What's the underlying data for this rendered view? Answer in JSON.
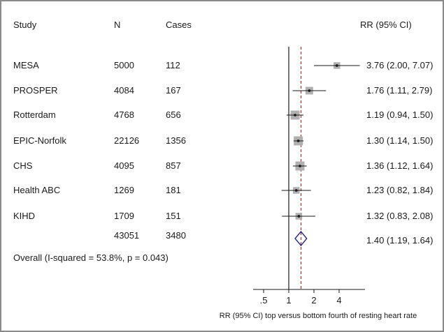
{
  "chart_data": {
    "type": "forest",
    "columns": {
      "study": "Study",
      "n": "N",
      "cases": "Cases",
      "rr": "RR (95% CI)"
    },
    "studies": [
      {
        "name": "MESA",
        "n": "5000",
        "cases": "112",
        "rr": 3.76,
        "lo": 2.0,
        "hi": 7.07,
        "label": "3.76 (2.00, 7.07)",
        "weight": 0.5
      },
      {
        "name": "PROSPER",
        "n": "4084",
        "cases": "167",
        "rr": 1.76,
        "lo": 1.11,
        "hi": 2.79,
        "label": "1.76 (1.11, 2.79)",
        "weight": 0.7
      },
      {
        "name": "Rotterdam",
        "n": "4768",
        "cases": "656",
        "rr": 1.19,
        "lo": 0.94,
        "hi": 1.5,
        "label": "1.19 (0.94, 1.50)",
        "weight": 1.0
      },
      {
        "name": "EPIC-Norfolk",
        "n": "22126",
        "cases": "1356",
        "rr": 1.3,
        "lo": 1.14,
        "hi": 1.5,
        "label": "1.30 (1.14, 1.50)",
        "weight": 1.0
      },
      {
        "name": "CHS",
        "n": "4095",
        "cases": "857",
        "rr": 1.36,
        "lo": 1.12,
        "hi": 1.64,
        "label": "1.36 (1.12, 1.64)",
        "weight": 1.0
      },
      {
        "name": "Health ABC",
        "n": "1269",
        "cases": "181",
        "rr": 1.23,
        "lo": 0.82,
        "hi": 1.84,
        "label": "1.23 (0.82, 1.84)",
        "weight": 0.5
      },
      {
        "name": "KIHD",
        "n": "1709",
        "cases": "151",
        "rr": 1.32,
        "lo": 0.83,
        "hi": 2.08,
        "label": "1.32 (0.83, 2.08)",
        "weight": 0.5
      }
    ],
    "overall": {
      "label_text": "Overall (I-squared = 53.8%, p = 0.043)",
      "n": "43051",
      "cases": "3480",
      "rr": 1.4,
      "lo": 1.19,
      "hi": 1.64,
      "label": "1.40 (1.19, 1.64)"
    },
    "x_axis": {
      "scale": "log",
      "ticks": [
        0.5,
        1,
        2,
        4
      ],
      "tick_labels": [
        ".5",
        "1",
        "2",
        "4"
      ],
      "title": "RR (95% CI) top versus bottom fourth of resting heart rate"
    },
    "null_line": 1,
    "colors": {
      "ci": "#1a1a1a",
      "box": "#b0b0b0",
      "reference_line": "#b03030",
      "diamond": "#2a2a8a",
      "frame": "#8a8a8a"
    }
  }
}
